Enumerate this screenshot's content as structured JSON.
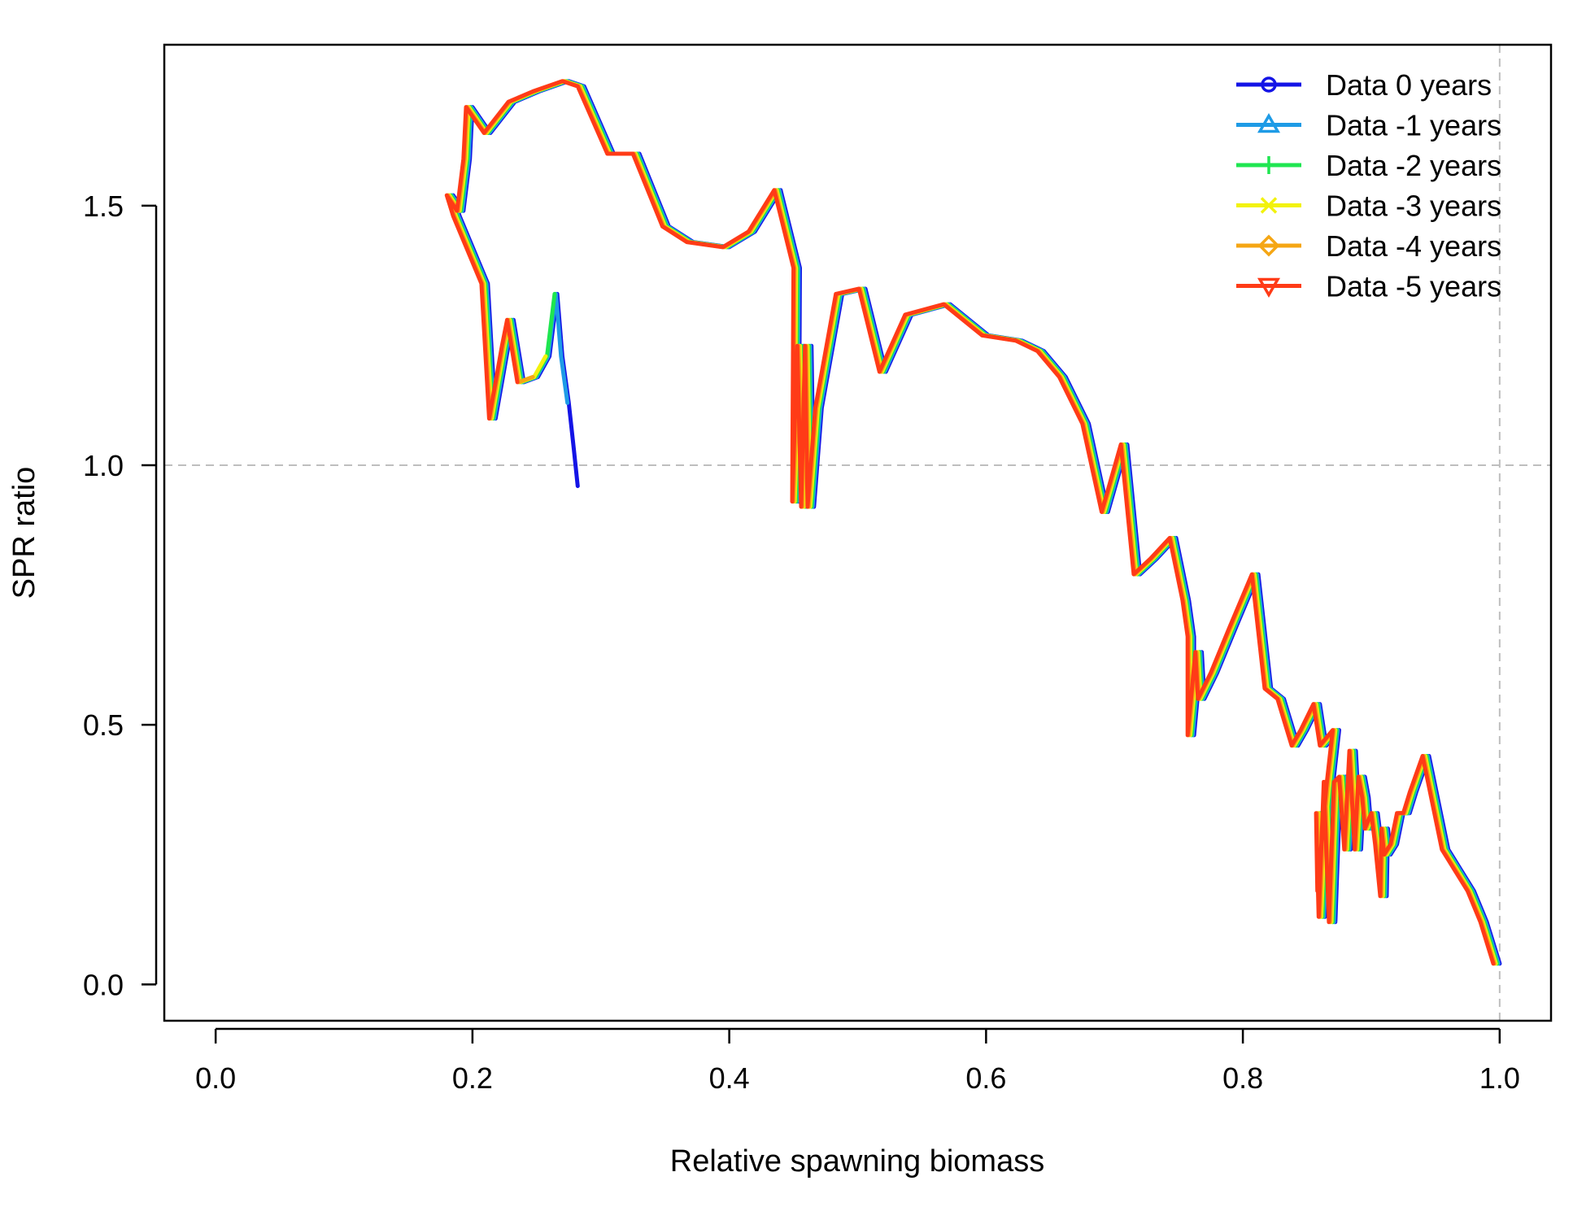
{
  "chart_data": {
    "type": "line",
    "title": "",
    "xlabel": "Relative spawning biomass",
    "ylabel": "SPR ratio",
    "xlim": [
      -0.04,
      1.04
    ],
    "ylim": [
      -0.07,
      1.81
    ],
    "xticks": [
      0.0,
      0.2,
      0.4,
      0.6,
      0.8,
      1.0
    ],
    "xtick_labels": [
      "0.0",
      "0.2",
      "0.4",
      "0.6",
      "0.8",
      "1.0"
    ],
    "yticks": [
      0.0,
      0.5,
      1.0,
      1.5
    ],
    "ytick_labels": [
      "0.0",
      "0.5",
      "1.0",
      "1.5"
    ],
    "reference_lines": [
      {
        "axis": "y",
        "value": 1.0,
        "style": "dashed",
        "color": "#bebebe"
      },
      {
        "axis": "x",
        "value": 1.0,
        "style": "dashed",
        "color": "#bebebe"
      }
    ],
    "legend_position": "top-right",
    "base_path": [
      [
        1.0,
        0.04
      ],
      [
        0.99,
        0.12
      ],
      [
        0.98,
        0.18
      ],
      [
        0.97,
        0.22
      ],
      [
        0.96,
        0.26
      ],
      [
        0.95,
        0.38
      ],
      [
        0.945,
        0.44
      ],
      [
        0.935,
        0.37
      ],
      [
        0.93,
        0.33
      ],
      [
        0.925,
        0.33
      ],
      [
        0.92,
        0.27
      ],
      [
        0.915,
        0.25
      ],
      [
        0.913,
        0.3
      ],
      [
        0.912,
        0.17
      ],
      [
        0.908,
        0.27
      ],
      [
        0.905,
        0.33
      ],
      [
        0.9,
        0.3
      ],
      [
        0.898,
        0.36
      ],
      [
        0.895,
        0.4
      ],
      [
        0.892,
        0.26
      ],
      [
        0.888,
        0.45
      ],
      [
        0.884,
        0.26
      ],
      [
        0.88,
        0.4
      ],
      [
        0.876,
        0.39
      ],
      [
        0.872,
        0.12
      ],
      [
        0.868,
        0.39
      ],
      [
        0.865,
        0.19
      ],
      [
        0.864,
        0.13
      ],
      [
        0.862,
        0.33
      ],
      [
        0.863,
        0.18
      ],
      [
        0.87,
        0.38
      ],
      [
        0.875,
        0.49
      ],
      [
        0.865,
        0.46
      ],
      [
        0.86,
        0.54
      ],
      [
        0.85,
        0.49
      ],
      [
        0.843,
        0.46
      ],
      [
        0.832,
        0.55
      ],
      [
        0.822,
        0.57
      ],
      [
        0.812,
        0.79
      ],
      [
        0.795,
        0.69
      ],
      [
        0.78,
        0.6
      ],
      [
        0.77,
        0.55
      ],
      [
        0.768,
        0.64
      ],
      [
        0.762,
        0.48
      ],
      [
        0.762,
        0.67
      ],
      [
        0.758,
        0.74
      ],
      [
        0.748,
        0.86
      ],
      [
        0.733,
        0.82
      ],
      [
        0.72,
        0.79
      ],
      [
        0.71,
        1.04
      ],
      [
        0.695,
        0.91
      ],
      [
        0.68,
        1.08
      ],
      [
        0.662,
        1.17
      ],
      [
        0.645,
        1.22
      ],
      [
        0.628,
        1.24
      ],
      [
        0.602,
        1.25
      ],
      [
        0.572,
        1.31
      ],
      [
        0.542,
        1.29
      ],
      [
        0.522,
        1.18
      ],
      [
        0.506,
        1.34
      ],
      [
        0.488,
        1.33
      ],
      [
        0.472,
        1.11
      ],
      [
        0.466,
        0.92
      ],
      [
        0.464,
        1.23
      ],
      [
        0.461,
        0.92
      ],
      [
        0.458,
        1.23
      ],
      [
        0.454,
        0.93
      ],
      [
        0.455,
        1.38
      ],
      [
        0.44,
        1.53
      ],
      [
        0.42,
        1.45
      ],
      [
        0.4,
        1.42
      ],
      [
        0.372,
        1.43
      ],
      [
        0.353,
        1.46
      ],
      [
        0.33,
        1.6
      ],
      [
        0.31,
        1.6
      ],
      [
        0.287,
        1.73
      ],
      [
        0.275,
        1.74
      ],
      [
        0.252,
        1.72
      ],
      [
        0.233,
        1.7
      ],
      [
        0.214,
        1.64
      ],
      [
        0.2,
        1.69
      ],
      [
        0.198,
        1.59
      ],
      [
        0.193,
        1.49
      ],
      [
        0.185,
        1.52
      ],
      [
        0.19,
        1.48
      ],
      [
        0.212,
        1.35
      ],
      [
        0.218,
        1.09
      ],
      [
        0.228,
        1.23
      ],
      [
        0.232,
        1.28
      ],
      [
        0.24,
        1.16
      ],
      [
        0.251,
        1.17
      ],
      [
        0.26,
        1.21
      ],
      [
        0.266,
        1.33
      ],
      [
        0.27,
        1.21
      ],
      [
        0.275,
        1.12
      ],
      [
        0.279,
        1.03
      ],
      [
        0.282,
        0.96
      ]
    ],
    "series": [
      {
        "name": "Data 0 years",
        "color": "#1414e6",
        "marker": "circle",
        "end_index": 97,
        "x_offset": 0.0
      },
      {
        "name": "Data -1 years",
        "color": "#1e9be6",
        "marker": "triangle-up",
        "end_index": 95,
        "x_offset": -0.001
      },
      {
        "name": "Data -2 years",
        "color": "#1ee650",
        "marker": "plus",
        "end_index": 93,
        "x_offset": -0.002
      },
      {
        "name": "Data -3 years",
        "color": "#f2f20d",
        "marker": "cross",
        "end_index": 92,
        "x_offset": -0.003
      },
      {
        "name": "Data -4 years",
        "color": "#f5a614",
        "marker": "diamond",
        "end_index": 91,
        "x_offset": -0.004
      },
      {
        "name": "Data -5 years",
        "color": "#ff3b17",
        "marker": "triangle-down",
        "end_index": 90,
        "x_offset": -0.005
      }
    ]
  }
}
